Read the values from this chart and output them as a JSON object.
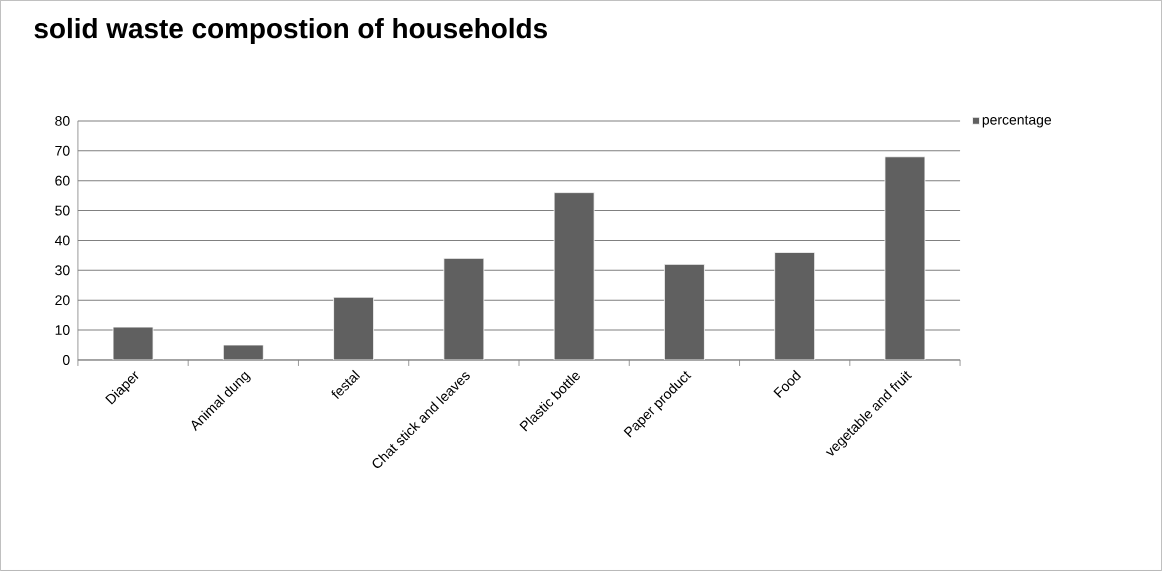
{
  "chart_data": {
    "type": "bar",
    "title": "solid waste compostion of households",
    "categories": [
      "Diaper",
      "Animal dung",
      "festal",
      "Chat stick and leaves",
      "Plastic bottle",
      "Paper product",
      "Food",
      "vegetable and fruit"
    ],
    "series": [
      {
        "name": "percentage",
        "color": "#606060",
        "values": [
          11,
          5,
          21,
          34,
          56,
          32,
          36,
          68
        ]
      }
    ],
    "ylim": [
      0,
      80
    ],
    "yticks": [
      0,
      10,
      20,
      30,
      40,
      50,
      60,
      70,
      80
    ],
    "grid": "y",
    "legend": "top right"
  }
}
